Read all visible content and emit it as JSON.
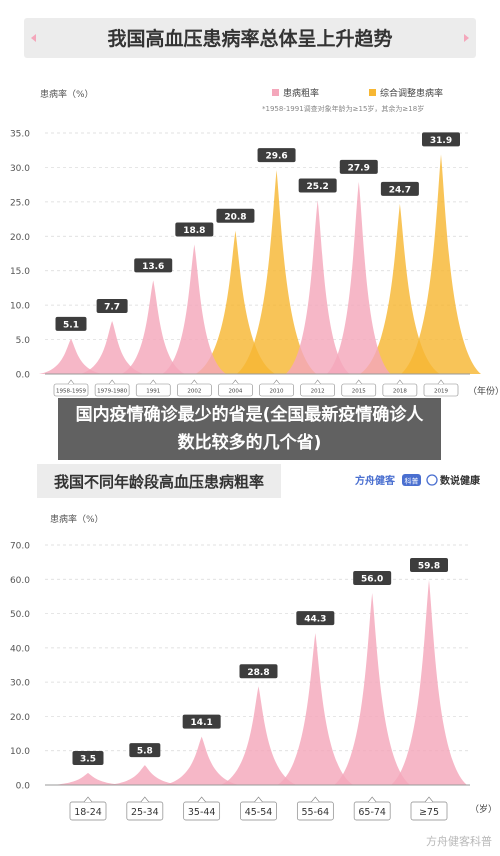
{
  "overlay_title": "国内疫情确诊最少的省是(全国最新疫情确诊人数比较多的几个省)",
  "watermark": "方舟健客科普",
  "colors": {
    "pink": "#f4a7bb",
    "orange": "#f7b733",
    "label_bg": "#3d3d3d",
    "axis_text": "#555555",
    "tick_box": "#888888"
  },
  "chart_data": [
    {
      "type": "area",
      "title": "我国高血压患病率总体呈上升趋势",
      "ylabel": "患病率（%）",
      "xlabel": "（年份）",
      "ylim": [
        0,
        35
      ],
      "yticks": [
        "0.0",
        "5.0",
        "10.0",
        "15.0",
        "20.0",
        "25.0",
        "30.0",
        "35.0"
      ],
      "grid": true,
      "legend_position": "top-right",
      "note": "*1958-1991调查对象年龄为≥15岁，其余为≥18岁",
      "series": [
        {
          "name": "患病粗率",
          "color": "#f4a7bb",
          "x": [
            "1958-1959",
            "1979-1980",
            "1991",
            "2002",
            "2012",
            "2015"
          ],
          "values": [
            5.1,
            7.7,
            13.6,
            18.8,
            25.2,
            27.9
          ]
        },
        {
          "name": "综合调整患病率",
          "color": "#f7b733",
          "x": [
            "2004",
            "2010",
            "2018",
            "2019"
          ],
          "values": [
            20.8,
            29.6,
            24.7,
            31.9
          ]
        }
      ],
      "categories": [
        "1958-1959",
        "1979-1980",
        "1991",
        "2002",
        "2004",
        "2010",
        "2012",
        "2015",
        "2018",
        "2019"
      ],
      "data_labels": [
        "5.1",
        "7.7",
        "13.6",
        "18.8",
        "20.8",
        "29.6",
        "25.2",
        "27.9",
        "24.7",
        "31.9"
      ]
    },
    {
      "type": "area",
      "title": "我国不同年龄段高血压患病粗率",
      "brand_1": "方舟健客",
      "brand_1_badge": "科普",
      "brand_2": "数说健康",
      "ylabel": "患病率（%）",
      "xlabel": "（岁）",
      "ylim": [
        0,
        70
      ],
      "yticks": [
        "0.0",
        "10.0",
        "20.0",
        "30.0",
        "40.0",
        "50.0",
        "60.0",
        "70.0"
      ],
      "grid": true,
      "series": [
        {
          "name": "",
          "color": "#f4a7bb",
          "x": [
            "18-24",
            "25-34",
            "35-44",
            "45-54",
            "55-64",
            "65-74",
            "≥75"
          ],
          "values": [
            3.5,
            5.8,
            14.1,
            28.8,
            44.3,
            56.0,
            59.8
          ]
        }
      ],
      "categories": [
        "18-24",
        "25-34",
        "35-44",
        "45-54",
        "55-64",
        "65-74",
        "≥75"
      ],
      "data_labels": [
        "3.5",
        "5.8",
        "14.1",
        "28.8",
        "44.3",
        "56.0",
        "59.8"
      ]
    }
  ]
}
